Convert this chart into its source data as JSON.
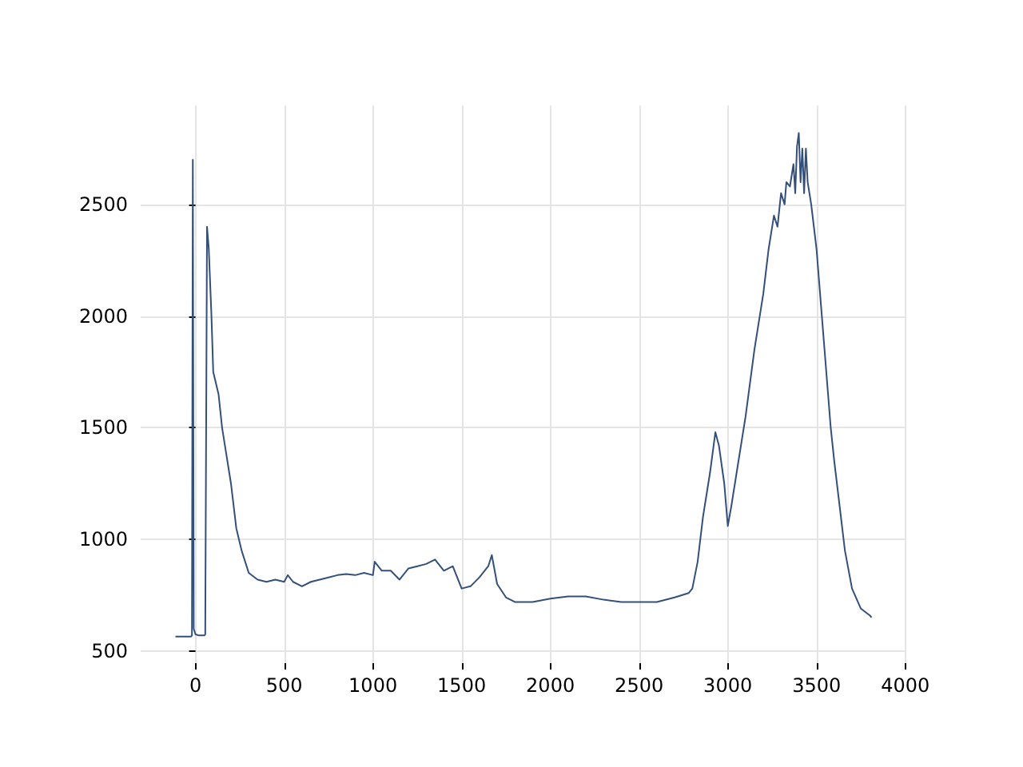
{
  "chart_data": {
    "type": "line",
    "xlim": [
      -309,
      4006
    ],
    "ylim": [
      446,
      2943
    ],
    "xticks": [
      0,
      500,
      1000,
      1500,
      2000,
      2500,
      3000,
      3500,
      4000
    ],
    "yticks": [
      500,
      1000,
      1500,
      2000,
      2500
    ],
    "grid": true,
    "marker": "none",
    "line_style": "solid",
    "series": [
      {
        "color": "#34507a",
        "x": [
          -113,
          -25,
          -20,
          -15,
          -10,
          0,
          20,
          50,
          55,
          65,
          75,
          90,
          100,
          130,
          150,
          170,
          200,
          230,
          260,
          300,
          350,
          400,
          450,
          500,
          520,
          550,
          600,
          650,
          700,
          750,
          800,
          850,
          900,
          950,
          1000,
          1010,
          1050,
          1100,
          1150,
          1200,
          1250,
          1300,
          1350,
          1400,
          1450,
          1500,
          1550,
          1600,
          1650,
          1670,
          1700,
          1750,
          1800,
          1900,
          2000,
          2100,
          2200,
          2300,
          2400,
          2500,
          2600,
          2700,
          2780,
          2800,
          2830,
          2860,
          2900,
          2930,
          2950,
          2980,
          3000,
          3020,
          3050,
          3100,
          3150,
          3200,
          3230,
          3260,
          3280,
          3300,
          3320,
          3330,
          3350,
          3370,
          3380,
          3390,
          3400,
          3410,
          3420,
          3430,
          3440,
          3450,
          3470,
          3500,
          3530,
          3550,
          3580,
          3600,
          3630,
          3660,
          3700,
          3750,
          3800,
          3810
        ],
        "values": [
          565,
          565,
          570,
          2700,
          600,
          575,
          570,
          570,
          575,
          2400,
          2300,
          2000,
          1750,
          1650,
          1500,
          1400,
          1250,
          1050,
          950,
          850,
          820,
          810,
          820,
          810,
          840,
          810,
          790,
          810,
          820,
          830,
          840,
          845,
          840,
          850,
          840,
          900,
          860,
          860,
          820,
          870,
          880,
          890,
          910,
          860,
          880,
          780,
          790,
          830,
          880,
          930,
          800,
          740,
          720,
          720,
          735,
          745,
          745,
          730,
          720,
          720,
          720,
          740,
          760,
          780,
          900,
          1100,
          1300,
          1480,
          1420,
          1250,
          1060,
          1150,
          1300,
          1550,
          1850,
          2100,
          2300,
          2450,
          2400,
          2550,
          2500,
          2600,
          2580,
          2680,
          2550,
          2760,
          2820,
          2600,
          2750,
          2550,
          2750,
          2600,
          2500,
          2300,
          2000,
          1800,
          1500,
          1350,
          1150,
          950,
          780,
          690,
          660,
          650
        ]
      }
    ]
  }
}
